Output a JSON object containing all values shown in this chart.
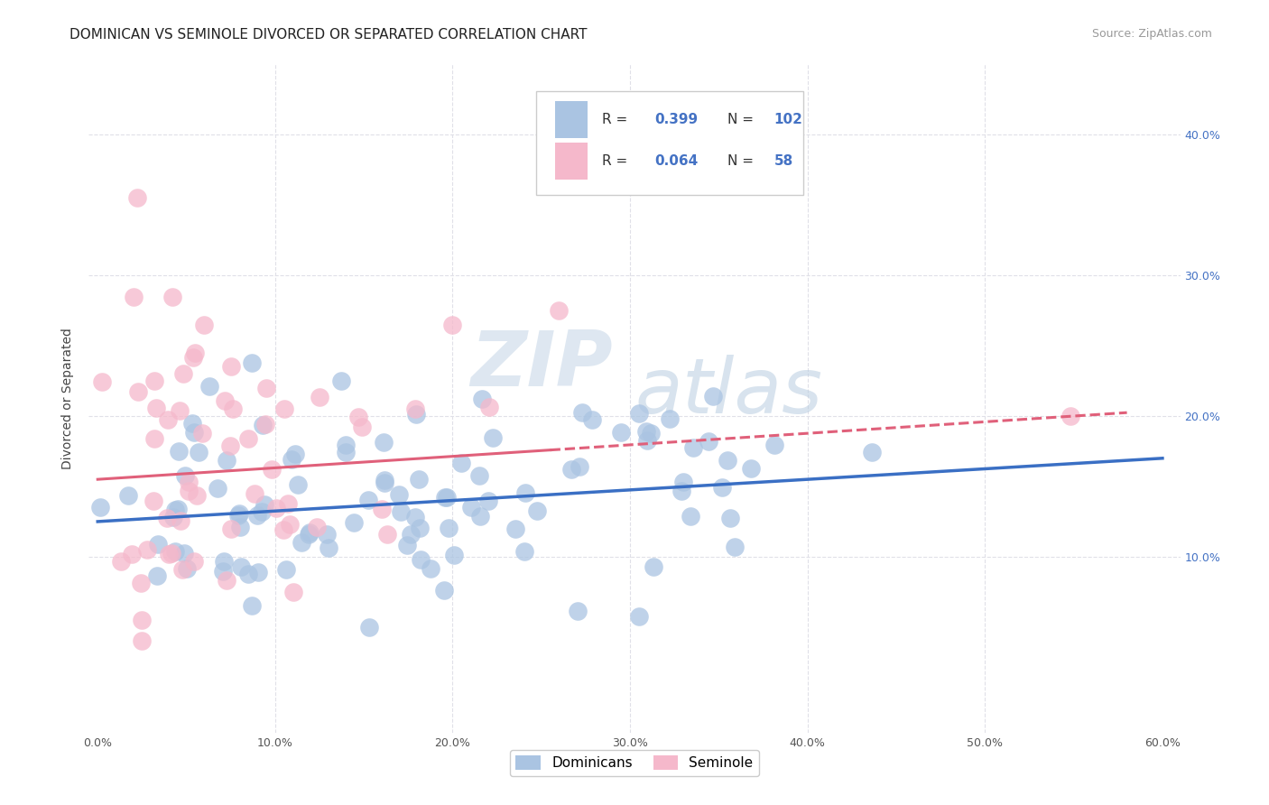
{
  "title": "DOMINICAN VS SEMINOLE DIVORCED OR SEPARATED CORRELATION CHART",
  "source": "Source: ZipAtlas.com",
  "ylabel": "Divorced or Separated",
  "xlim": [
    -0.005,
    0.61
  ],
  "ylim": [
    -0.025,
    0.45
  ],
  "xticks": [
    0.0,
    0.1,
    0.2,
    0.3,
    0.4,
    0.5,
    0.6
  ],
  "xticklabels": [
    "0.0%",
    "10.0%",
    "20.0%",
    "30.0%",
    "40.0%",
    "50.0%",
    "60.0%"
  ],
  "yticks_right": [
    0.1,
    0.2,
    0.3,
    0.4
  ],
  "yticklabels_right": [
    "10.0%",
    "20.0%",
    "30.0%",
    "40.0%"
  ],
  "dominicans_color": "#aac4e2",
  "seminole_color": "#f5b8cb",
  "dominicans_line_color": "#3a6fc4",
  "seminole_line_color": "#e0607a",
  "dominicans_R": 0.399,
  "dominicans_N": 102,
  "seminole_R": 0.064,
  "seminole_N": 58,
  "watermark_zip": "ZIP",
  "watermark_atlas": "atlas",
  "watermark_color": "#dce6f0",
  "background_color": "#ffffff",
  "grid_color": "#e0e0e8",
  "title_fontsize": 11,
  "axis_label_fontsize": 10,
  "tick_fontsize": 9,
  "legend_fontsize": 11,
  "source_fontsize": 9,
  "right_tick_color": "#4472c4"
}
